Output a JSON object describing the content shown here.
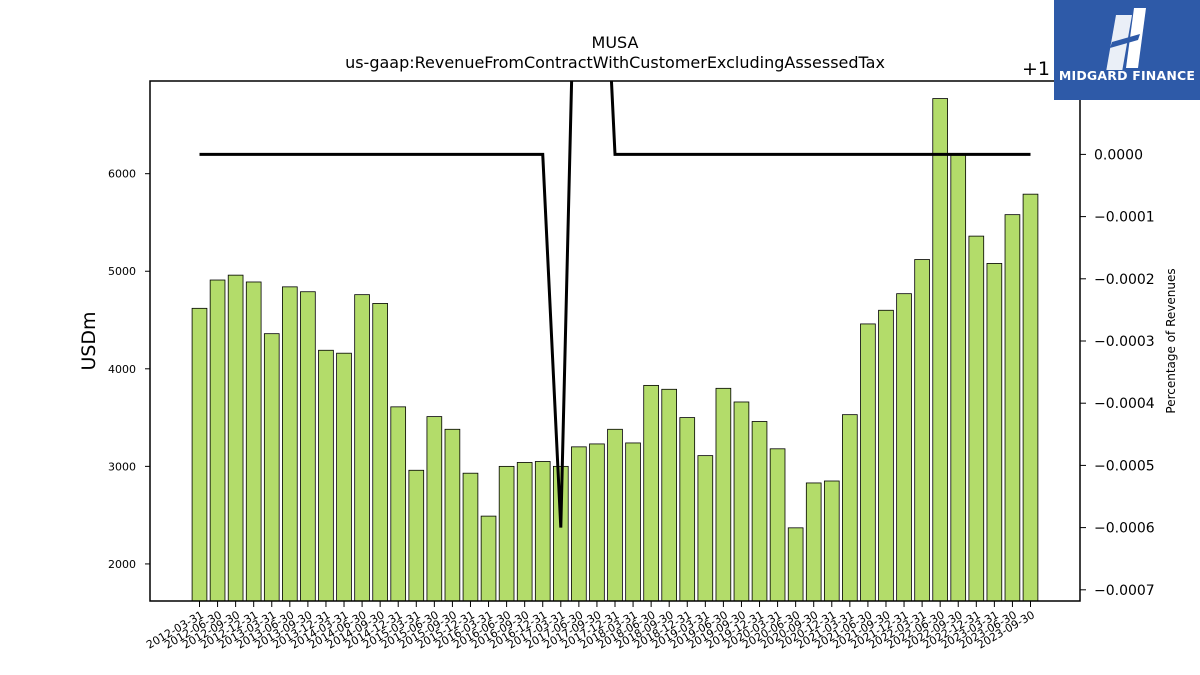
{
  "chart_data": {
    "type": "bar",
    "title": "MUSA",
    "subtitle": "us-gaap:RevenueFromContractWithCustomerExcludingAssessedTax",
    "ylabel": "USDm",
    "y2label": "Percentage of Revenues",
    "y2_offset_label": "+1",
    "ylim": [
      1620,
      6950
    ],
    "y2lim": [
      -0.000718,
      0.000118
    ],
    "yticks": [
      2000,
      3000,
      4000,
      5000,
      6000
    ],
    "y2ticks": [
      0.0,
      -0.0001,
      -0.0002,
      -0.0003,
      -0.0004,
      -0.0005,
      -0.0006,
      -0.0007
    ],
    "y2tick_labels": [
      "0.0000",
      "−0.0001",
      "−0.0002",
      "−0.0003",
      "−0.0004",
      "−0.0005",
      "−0.0006",
      "−0.0007"
    ],
    "categories": [
      "2012-03-31",
      "2012-06-30",
      "2012-09-30",
      "2012-12-31",
      "2013-03-31",
      "2013-06-30",
      "2013-09-30",
      "2013-12-31",
      "2014-03-31",
      "2014-06-30",
      "2014-09-30",
      "2014-12-31",
      "2015-03-31",
      "2015-06-30",
      "2015-09-30",
      "2015-12-31",
      "2016-03-31",
      "2016-06-30",
      "2016-09-30",
      "2016-12-31",
      "2017-03-31",
      "2017-06-30",
      "2017-09-30",
      "2017-12-31",
      "2018-03-31",
      "2018-06-30",
      "2018-09-30",
      "2018-12-31",
      "2019-03-31",
      "2019-06-30",
      "2019-09-30",
      "2019-12-31",
      "2020-03-31",
      "2020-06-30",
      "2020-09-30",
      "2020-12-31",
      "2021-03-31",
      "2021-06-30",
      "2021-09-30",
      "2021-12-31",
      "2022-03-31",
      "2022-06-30",
      "2022-09-30",
      "2022-12-31",
      "2023-03-31",
      "2023-06-30",
      "2023-09-30"
    ],
    "series": [
      {
        "type": "bar",
        "values": [
          4620,
          4910,
          4960,
          4890,
          4360,
          4840,
          4790,
          4190,
          4160,
          4760,
          4670,
          3610,
          2960,
          3510,
          3380,
          2930,
          2490,
          3000,
          3040,
          3050,
          3000,
          3200,
          3230,
          3380,
          3240,
          3830,
          3790,
          3500,
          3110,
          3800,
          3660,
          3460,
          3180,
          2370,
          2830,
          2850,
          3530,
          4460,
          4600,
          4770,
          5120,
          6770,
          6190,
          5360,
          5080,
          5580,
          5790
        ],
        "color": "#b3dc6a"
      },
      {
        "type": "line",
        "axis": "right",
        "values": [
          0,
          0,
          0,
          0,
          0,
          0,
          0,
          0,
          0,
          0,
          0,
          0,
          0,
          0,
          0,
          0,
          0,
          0,
          0,
          0,
          -0.0006,
          0.0006,
          0.0006,
          0,
          0,
          0,
          0,
          0,
          0,
          0,
          0,
          0,
          0,
          0,
          0,
          0,
          0,
          0,
          0,
          0,
          0,
          0,
          0,
          0,
          0,
          0,
          0
        ],
        "color": "#000000"
      }
    ],
    "grid": false
  },
  "logo": {
    "text": "MIDGARD FINANCE"
  }
}
